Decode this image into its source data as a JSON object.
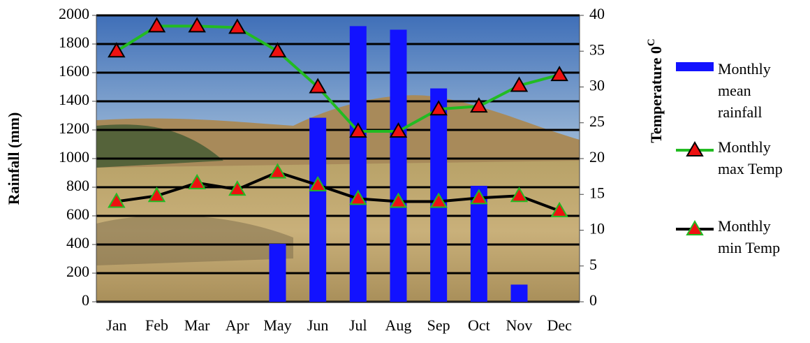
{
  "chart_data": {
    "type": "bar-line",
    "ylabel": "Rainfall (mm)",
    "y2label": "Temperature  0",
    "y2label_superscript": "C",
    "categories": [
      "Jan",
      "Feb",
      "Mar",
      "Apr",
      "May",
      "Jun",
      "Jul",
      "Aug",
      "Sep",
      "Oct",
      "Nov",
      "Dec"
    ],
    "series": [
      {
        "name": "Monthly mean rainfall",
        "type": "bar",
        "color": "#1212ff",
        "axis": "y",
        "values": [
          0,
          0,
          0,
          0,
          405,
          1285,
          1925,
          1900,
          1490,
          810,
          120,
          0
        ]
      },
      {
        "name": "Monthly max Temp",
        "type": "line",
        "color": "#22bb22",
        "marker_color": "#ee1111",
        "marker_edge": "#000000",
        "axis": "y2",
        "values": [
          35.0,
          38.5,
          38.5,
          38.3,
          35.0,
          30.0,
          23.8,
          23.8,
          26.9,
          27.3,
          30.2,
          31.7
        ]
      },
      {
        "name": "Monthly min Temp",
        "type": "line",
        "color": "#000000",
        "marker_color": "#ee1111",
        "marker_edge": "#22bb22",
        "axis": "y2",
        "values": [
          14.0,
          14.8,
          16.6,
          15.7,
          18.1,
          16.3,
          14.4,
          14.0,
          14.0,
          14.5,
          14.8,
          12.7
        ]
      }
    ],
    "ylim": [
      0,
      2000
    ],
    "yticks": [
      0,
      200,
      400,
      600,
      800,
      1000,
      1200,
      1400,
      1600,
      1800,
      2000
    ],
    "y2lim": [
      0,
      40
    ],
    "y2ticks": [
      0,
      5,
      10,
      15,
      20,
      25,
      30,
      35,
      40
    ],
    "grid": true
  }
}
